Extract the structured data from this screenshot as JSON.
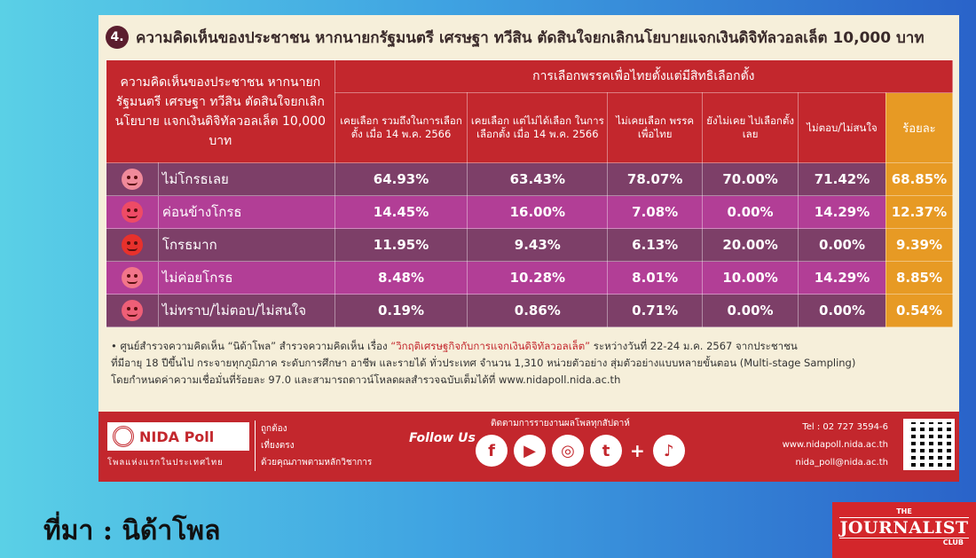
{
  "title": {
    "number": "4.",
    "text": "ความคิดเห็นของประชาชน หากนายกรัฐมนตรี เศรษฐา ทวีสิน ตัดสินใจยกเลิกนโยบายแจกเงินดิจิทัลวอลเล็ต 10,000 บาท"
  },
  "table": {
    "left_header": "ความคิดเห็นของประชาชน หากนายกรัฐมนตรี เศรษฐา ทวีสิน ตัดสินใจยกเลิกนโยบาย แจกเงินดิจิทัลวอลเล็ต 10,000 บาท",
    "group_header": "การเลือกพรรคเพื่อไทยตั้งแต่มีสิทธิเลือกตั้ง",
    "columns": [
      "เคยเลือก รวมถึงในการเลือกตั้ง เมื่อ 14 พ.ค. 2566",
      "เคยเลือก แต่ไม่ได้เลือก ในการเลือกตั้ง เมื่อ 14 พ.ค. 2566",
      "ไม่เคยเลือก พรรคเพื่อไทย",
      "ยังไม่เคย ไปเลือกตั้งเลย",
      "ไม่ตอบ/ไม่สนใจ"
    ],
    "percent_header": "ร้อยละ",
    "rows": [
      {
        "icon": "smiling-face-icon",
        "label": "ไม่โกรธเลย",
        "values": [
          "64.93%",
          "63.43%",
          "78.07%",
          "70.00%",
          "71.42%"
        ],
        "percent": "68.85%"
      },
      {
        "icon": "angry-face-icon",
        "label": "ค่อนข้างโกรธ",
        "values": [
          "14.45%",
          "16.00%",
          "7.08%",
          "0.00%",
          "14.29%"
        ],
        "percent": "12.37%"
      },
      {
        "icon": "furious-face-icon",
        "label": "โกรธมาก",
        "values": [
          "11.95%",
          "9.43%",
          "6.13%",
          "20.00%",
          "0.00%"
        ],
        "percent": "9.39%"
      },
      {
        "icon": "slightly-annoyed-face-icon",
        "label": "ไม่ค่อยโกรธ",
        "values": [
          "8.48%",
          "10.28%",
          "8.01%",
          "10.00%",
          "14.29%"
        ],
        "percent": "8.85%"
      },
      {
        "icon": "confused-face-icon",
        "label": "ไม่ทราบ/ไม่ตอบ/ไม่สนใจ",
        "values": [
          "0.19%",
          "0.86%",
          "0.71%",
          "0.00%",
          "0.00%"
        ],
        "percent": "0.54%"
      }
    ]
  },
  "note": {
    "part1": "• ศูนย์สำรวจความคิดเห็น “นิด้าโพล” สำรวจความคิดเห็น เรื่อง",
    "topic": "“วิกฤติเศรษฐกิจกับการแจกเงินดิจิทัลวอลเล็ต”",
    "part2": "ระหว่างวันที่ 22-24 ม.ค. 2567 จากประชาชน",
    "line2": "ที่มีอายุ 18 ปีขึ้นไป กระจายทุกภูมิภาค ระดับการศึกษา อาชีพ และรายได้ ทั่วประเทศ จำนวน 1,310 หน่วยตัวอย่าง สุ่มตัวอย่างแบบหลายขั้นตอน (Multi-stage Sampling)",
    "line3": "โดยกำหนดค่าความเชื่อมั่นที่ร้อยละ 97.0 และสามารถดาวน์โหลดผลสำรวจฉบับเต็มได้ที่ www.nidapoll.nida.ac.th"
  },
  "footer": {
    "logo": "NIDA Poll",
    "tagline": "โพลแห่งแรกในประเทศไทย",
    "slogans": [
      "ถูกต้อง",
      "เที่ยงตรง",
      "ด้วยคุณภาพตามหลักวิชาการ"
    ],
    "follow": "Follow Us",
    "follow_caption": "ติดตามการรายงานผลโพลทุกสัปดาห์",
    "social_icons": [
      "facebook-icon",
      "youtube-icon",
      "instagram-icon",
      "twitter-icon",
      "tiktok-icon"
    ],
    "social_glyphs": [
      "f",
      "▶",
      "◎",
      "t",
      "♪"
    ],
    "plus": "+",
    "tel": "Tel : 02 727 3594-6",
    "website": "www.nidapoll.nida.ac.th",
    "email": "nida_poll@nida.ac.th"
  },
  "source": "ที่มา : นิด้าโพล",
  "brand": {
    "the": "THE",
    "name": "JOURNALIST",
    "club": "CLUB"
  },
  "colors": {
    "header_red": "#c3272d",
    "row_dark": "#7d3f68",
    "row_pink": "#b23e96",
    "percent_orange": "#e79a24"
  }
}
